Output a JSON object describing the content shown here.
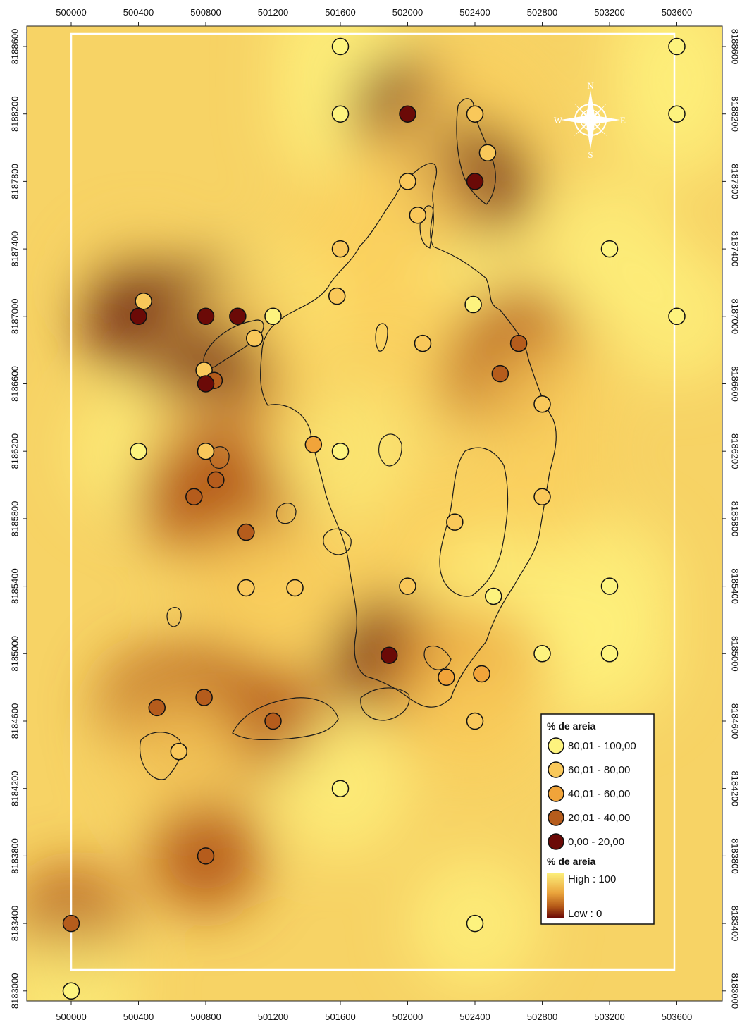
{
  "map": {
    "x_ticks": [
      "500000",
      "500400",
      "500800",
      "501200",
      "501600",
      "502000",
      "502400",
      "502800",
      "503200",
      "503600"
    ],
    "y_ticks": [
      "8188600",
      "8188200",
      "8187800",
      "8187400",
      "8187000",
      "8186600",
      "8186200",
      "8185800",
      "8185400",
      "8185000",
      "8184600",
      "8184200",
      "8183800",
      "8183400",
      "8183000"
    ],
    "colors": {
      "high": "#fdf17c",
      "mid_high": "#f9cf5e",
      "mid": "#eaa43c",
      "mid_low": "#b55a18",
      "low": "#6b0a07",
      "boundary": "#ffffff",
      "coastline": "#1a1a1a"
    },
    "compass": {
      "n": "N",
      "s": "S",
      "e": "E",
      "w": "W"
    },
    "legend": {
      "title_points": "% de areia",
      "classes": [
        {
          "label": "80,01 - 100,00",
          "color": "#fdf37e"
        },
        {
          "label": "60,01 - 80,00",
          "color": "#f9c85a"
        },
        {
          "label": "40,01 - 60,00",
          "color": "#f1a43a"
        },
        {
          "label": "20,01 - 40,00",
          "color": "#b55c1c"
        },
        {
          "label": "0,00 - 20,00",
          "color": "#6b0a07"
        }
      ],
      "title_ramp": "% de areia",
      "ramp_high": "High : 100",
      "ramp_low": "Low : 0"
    }
  },
  "samples": [
    {
      "x": 501600,
      "y": 8188600,
      "v": 90
    },
    {
      "x": 503600,
      "y": 8188600,
      "v": 90
    },
    {
      "x": 501600,
      "y": 8188200,
      "v": 88
    },
    {
      "x": 502000,
      "y": 8188200,
      "v": 10
    },
    {
      "x": 502400,
      "y": 8188200,
      "v": 70
    },
    {
      "x": 503600,
      "y": 8188200,
      "v": 90
    },
    {
      "x": 502475,
      "y": 8187970,
      "v": 70
    },
    {
      "x": 502000,
      "y": 8187800,
      "v": 75
    },
    {
      "x": 502400,
      "y": 8187800,
      "v": 12
    },
    {
      "x": 502060,
      "y": 8187600,
      "v": 75
    },
    {
      "x": 501600,
      "y": 8187400,
      "v": 72
    },
    {
      "x": 503200,
      "y": 8187400,
      "v": 88
    },
    {
      "x": 500430,
      "y": 8187090,
      "v": 72
    },
    {
      "x": 501580,
      "y": 8187120,
      "v": 70
    },
    {
      "x": 502390,
      "y": 8187070,
      "v": 82
    },
    {
      "x": 500400,
      "y": 8187000,
      "v": 12
    },
    {
      "x": 500800,
      "y": 8187000,
      "v": 12
    },
    {
      "x": 500990,
      "y": 8187000,
      "v": 15
    },
    {
      "x": 501200,
      "y": 8187000,
      "v": 85
    },
    {
      "x": 503600,
      "y": 8187000,
      "v": 90
    },
    {
      "x": 501090,
      "y": 8186870,
      "v": 68
    },
    {
      "x": 502090,
      "y": 8186840,
      "v": 75
    },
    {
      "x": 502660,
      "y": 8186840,
      "v": 22
    },
    {
      "x": 500790,
      "y": 8186680,
      "v": 70
    },
    {
      "x": 502550,
      "y": 8186660,
      "v": 25
    },
    {
      "x": 500850,
      "y": 8186620,
      "v": 30
    },
    {
      "x": 500800,
      "y": 8186600,
      "v": 12
    },
    {
      "x": 502800,
      "y": 8186480,
      "v": 72
    },
    {
      "x": 500400,
      "y": 8186200,
      "v": 88
    },
    {
      "x": 500800,
      "y": 8186200,
      "v": 72
    },
    {
      "x": 501440,
      "y": 8186240,
      "v": 55
    },
    {
      "x": 501600,
      "y": 8186200,
      "v": 85
    },
    {
      "x": 500860,
      "y": 8186030,
      "v": 30
    },
    {
      "x": 500730,
      "y": 8185930,
      "v": 25
    },
    {
      "x": 502800,
      "y": 8185930,
      "v": 75
    },
    {
      "x": 502280,
      "y": 8185780,
      "v": 72
    },
    {
      "x": 501040,
      "y": 8185720,
      "v": 30
    },
    {
      "x": 501040,
      "y": 8185390,
      "v": 80
    },
    {
      "x": 501330,
      "y": 8185390,
      "v": 80
    },
    {
      "x": 502000,
      "y": 8185400,
      "v": 76
    },
    {
      "x": 503200,
      "y": 8185400,
      "v": 90
    },
    {
      "x": 502510,
      "y": 8185340,
      "v": 82
    },
    {
      "x": 501890,
      "y": 8184990,
      "v": 12
    },
    {
      "x": 502800,
      "y": 8185000,
      "v": 88
    },
    {
      "x": 503200,
      "y": 8185000,
      "v": 90
    },
    {
      "x": 502230,
      "y": 8184860,
      "v": 55
    },
    {
      "x": 502440,
      "y": 8184880,
      "v": 55
    },
    {
      "x": 500790,
      "y": 8184740,
      "v": 30
    },
    {
      "x": 500510,
      "y": 8184680,
      "v": 30
    },
    {
      "x": 501200,
      "y": 8184600,
      "v": 30
    },
    {
      "x": 502400,
      "y": 8184600,
      "v": 80
    },
    {
      "x": 500640,
      "y": 8184420,
      "v": 72
    },
    {
      "x": 501600,
      "y": 8184200,
      "v": 85
    },
    {
      "x": 500800,
      "y": 8183800,
      "v": 30
    },
    {
      "x": 500000,
      "y": 8183400,
      "v": 40
    },
    {
      "x": 502400,
      "y": 8183400,
      "v": 88
    },
    {
      "x": 500000,
      "y": 8183000,
      "v": 88
    }
  ]
}
